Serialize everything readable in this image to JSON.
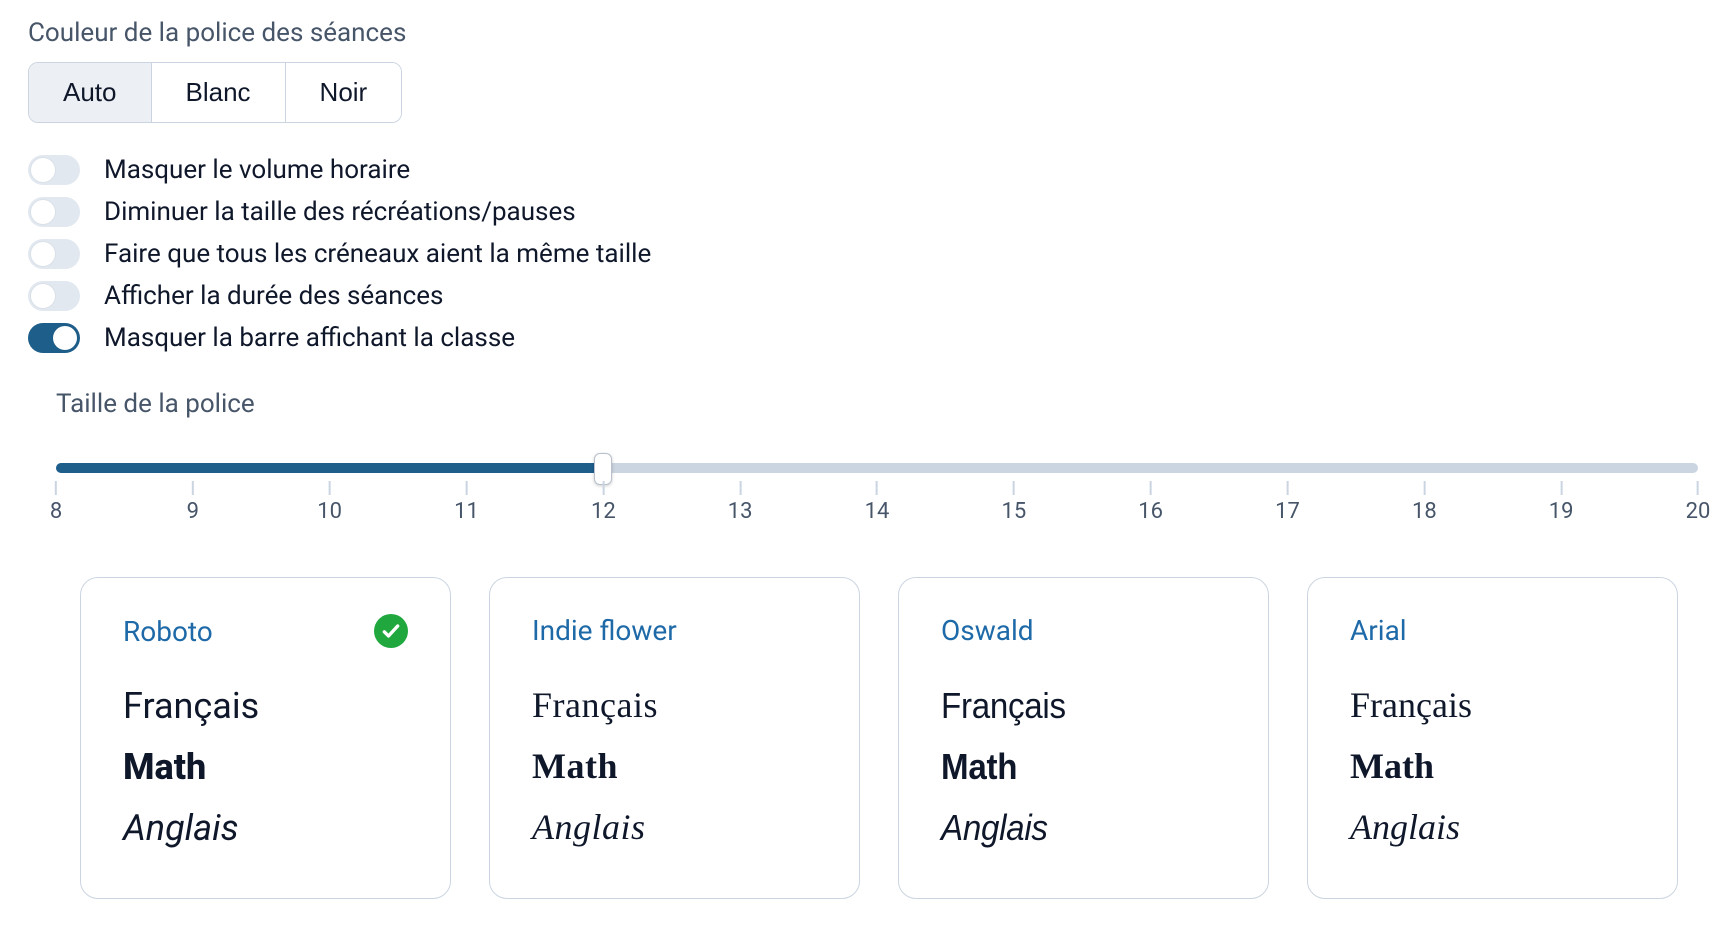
{
  "colors": {
    "accent": "#1d5e8a",
    "track": "#cbd5e1",
    "toggle_off": "#e2e8f0",
    "toggle_on": "#1d5e8a",
    "border": "#cbd5e1",
    "text": "#0f172a",
    "muted_text": "#475569",
    "link": "#1e6aa8",
    "check_bg": "#20a83f",
    "segmented_active_bg": "#eceff3"
  },
  "font_color_section": {
    "label": "Couleur de la police des séances",
    "options": [
      {
        "label": "Auto",
        "active": true
      },
      {
        "label": "Blanc",
        "active": false
      },
      {
        "label": "Noir",
        "active": false
      }
    ]
  },
  "toggles": [
    {
      "label": "Masquer le volume horaire",
      "on": false
    },
    {
      "label": "Diminuer la taille des récréations/pauses",
      "on": false
    },
    {
      "label": "Faire que tous les créneaux aient la même taille",
      "on": false
    },
    {
      "label": "Afficher la durée des séances",
      "on": false
    },
    {
      "label": "Masquer la barre affichant la classe",
      "on": true
    }
  ],
  "font_size_slider": {
    "label": "Taille de la police",
    "min": 8,
    "max": 20,
    "step": 1,
    "value": 12,
    "ticks": [
      8,
      9,
      10,
      11,
      12,
      13,
      14,
      15,
      16,
      17,
      18,
      19,
      20
    ]
  },
  "font_cards": {
    "samples": {
      "line1": "Français",
      "line2": "Math",
      "line3": "Anglais"
    },
    "items": [
      {
        "name": "Roboto",
        "selected": true,
        "css_class": "ff-roboto"
      },
      {
        "name": "Indie flower",
        "selected": false,
        "css_class": "ff-indie"
      },
      {
        "name": "Oswald",
        "selected": false,
        "css_class": "ff-oswald"
      },
      {
        "name": "Arial",
        "selected": false,
        "css_class": "ff-arial"
      }
    ]
  }
}
